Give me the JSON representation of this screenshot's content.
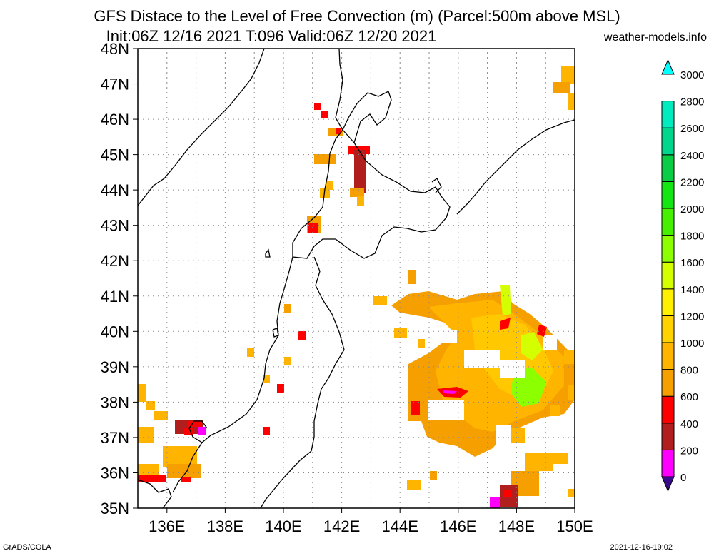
{
  "title_line1": "GFS Distace to the Level of Free Convection (m) (Parcel:500m above MSL)",
  "title_line2": "Init:06Z 12/16 2021 T:096 Valid:06Z 12/20 2021",
  "site": "weather-models.info",
  "footer_left": "GrADS/COLA",
  "footer_right": "2021-12-16-19:02",
  "lat_labels": [
    "35N",
    "36N",
    "37N",
    "38N",
    "39N",
    "40N",
    "41N",
    "42N",
    "43N",
    "44N",
    "45N",
    "46N",
    "47N",
    "48N"
  ],
  "lon_labels": [
    "136E",
    "138E",
    "140E",
    "142E",
    "144E",
    "146E",
    "148E",
    "150E"
  ],
  "colorbar": {
    "labels": [
      "0",
      "200",
      "400",
      "600",
      "800",
      "1000",
      "1200",
      "1400",
      "1600",
      "1800",
      "2000",
      "2200",
      "2400",
      "2600",
      "2800",
      "3000"
    ],
    "colors": [
      "#3a0a8c",
      "#ff00ff",
      "#b01e1e",
      "#ff0000",
      "#f5a000",
      "#ffb400",
      "#ffd200",
      "#fff000",
      "#d4ff00",
      "#8cff00",
      "#46f000",
      "#14e614",
      "#0acd46",
      "#00d78c",
      "#00ebbe",
      "#00ffff"
    ]
  }
}
